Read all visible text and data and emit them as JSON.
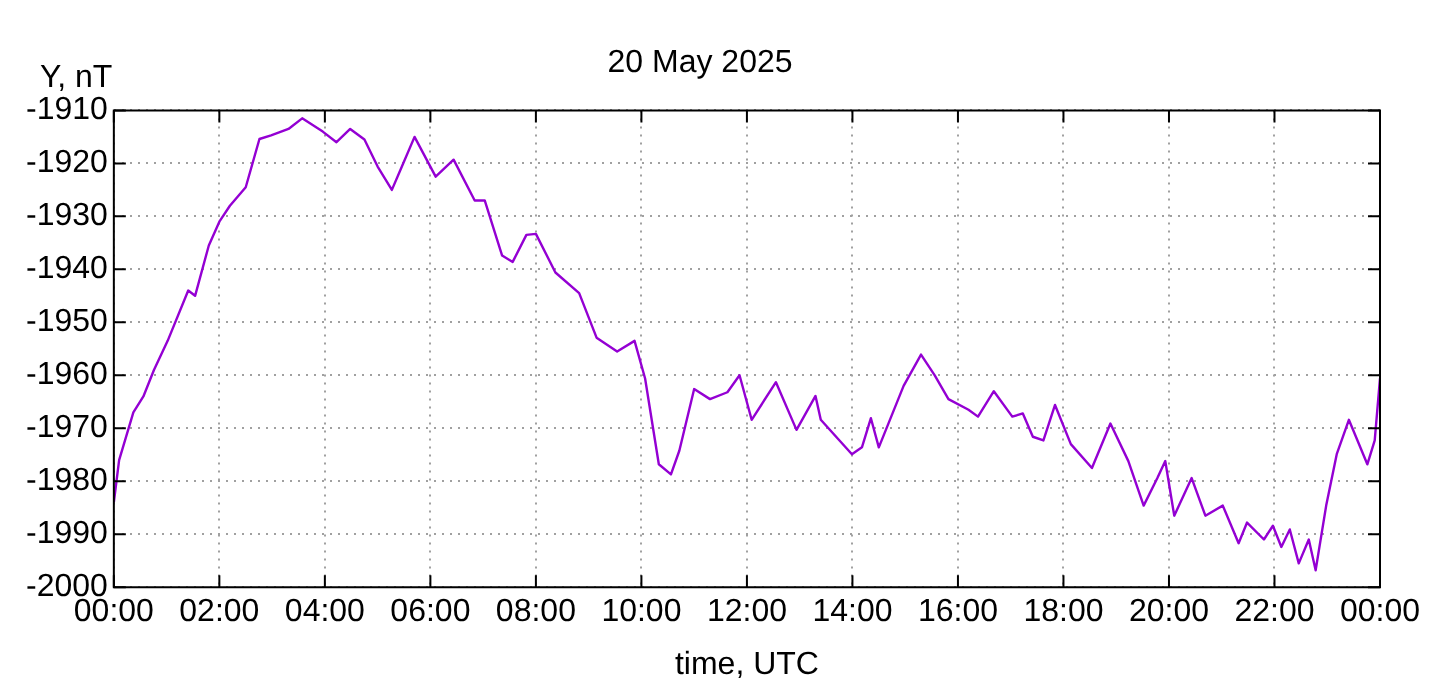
{
  "chart_data": {
    "type": "line",
    "title": "20 May 2025",
    "xlabel": "time, UTC",
    "ylabel": "Y, nT",
    "xlim": [
      0,
      24
    ],
    "xticks": [
      {
        "value": 0,
        "label": "00:00"
      },
      {
        "value": 2,
        "label": "02:00"
      },
      {
        "value": 4,
        "label": "04:00"
      },
      {
        "value": 6,
        "label": "06:00"
      },
      {
        "value": 8,
        "label": "08:00"
      },
      {
        "value": 10,
        "label": "10:00"
      },
      {
        "value": 12,
        "label": "12:00"
      },
      {
        "value": 14,
        "label": "14:00"
      },
      {
        "value": 16,
        "label": "16:00"
      },
      {
        "value": 18,
        "label": "18:00"
      },
      {
        "value": 20,
        "label": "20:00"
      },
      {
        "value": 22,
        "label": "22:00"
      },
      {
        "value": 24,
        "label": "00:00"
      }
    ],
    "ylim": [
      -2000,
      -1910
    ],
    "yticks": [
      -2000,
      -1990,
      -1980,
      -1970,
      -1960,
      -1950,
      -1940,
      -1930,
      -1920,
      -1910
    ],
    "grid": true,
    "legend": false,
    "marker": "none",
    "line_style": "solid",
    "series": [
      {
        "color": "#9400d3",
        "x": [
          0,
          0.1,
          0.37,
          0.56,
          0.76,
          1.02,
          1.41,
          1.54,
          1.8,
          2.0,
          2.2,
          2.5,
          2.76,
          2.98,
          3.31,
          3.57,
          3.96,
          4.22,
          4.48,
          4.75,
          5.0,
          5.27,
          5.46,
          5.7,
          6.1,
          6.44,
          6.84,
          7.03,
          7.36,
          7.56,
          7.82,
          8.0,
          8.37,
          8.82,
          9.15,
          9.54,
          9.87,
          10.07,
          10.33,
          10.56,
          10.72,
          11.0,
          11.3,
          11.63,
          11.86,
          12.09,
          12.55,
          12.94,
          13.3,
          13.4,
          13.99,
          14.18,
          14.35,
          14.5,
          14.97,
          15.3,
          15.56,
          15.82,
          16.2,
          16.38,
          16.68,
          17.03,
          17.23,
          17.42,
          17.62,
          17.84,
          18.14,
          18.54,
          18.89,
          19.23,
          19.52,
          19.78,
          19.93,
          20.1,
          20.43,
          20.69,
          21.02,
          21.32,
          21.48,
          21.8,
          21.97,
          22.13,
          22.29,
          22.46,
          22.65,
          22.78,
          22.98,
          23.18,
          23.41,
          23.76,
          23.9,
          24.0
        ],
        "values": [
          -1984,
          -1976,
          -1967,
          -1964,
          -1959,
          -1953.5,
          -1944,
          -1945,
          -1935.5,
          -1931,
          -1928,
          -1924.5,
          -1915.4,
          -1914.7,
          -1913.5,
          -1911.5,
          -1914,
          -1916,
          -1913.5,
          -1915.5,
          -1920.6,
          -1925,
          -1920.6,
          -1915,
          -1922.5,
          -1919.3,
          -1927,
          -1927,
          -1937.4,
          -1938.6,
          -1933.5,
          -1933.3,
          -1940.6,
          -1944.5,
          -1952.9,
          -1955.5,
          -1953.5,
          -1960.6,
          -1976.8,
          -1978.7,
          -1974.2,
          -1962.6,
          -1964.5,
          -1963.2,
          -1960,
          -1968.4,
          -1961.3,
          -1970.3,
          -1963.9,
          -1968.4,
          -1974.9,
          -1973.6,
          -1968.1,
          -1973.6,
          -1962,
          -1956.1,
          -1960,
          -1964.5,
          -1966.5,
          -1967.8,
          -1963,
          -1967.8,
          -1967.2,
          -1971.6,
          -1972.3,
          -1965.6,
          -1973,
          -1977.5,
          -1969.1,
          -1976.2,
          -1984.6,
          -1979.4,
          -1976.2,
          -1986.5,
          -1979.4,
          -1986.5,
          -1984.6,
          -1991.7,
          -1987.8,
          -1991,
          -1988.4,
          -1992.4,
          -1989.1,
          -1995.5,
          -1991,
          -1996.8,
          -1984.6,
          -1974.9,
          -1968.4,
          -1976.8,
          -1972.3,
          -1960.6
        ]
      }
    ]
  }
}
